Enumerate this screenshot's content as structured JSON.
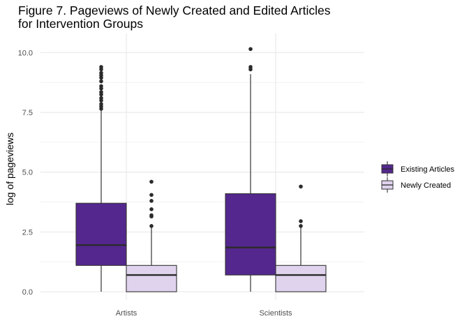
{
  "chart_data": {
    "type": "boxplot",
    "title": "Figure 7. Pageviews of Newly Created and Edited Articles\n for Intervention Groups",
    "xlabel": "",
    "ylabel": "log of pageviews",
    "categories": [
      "Artists",
      "Scientists"
    ],
    "ylim": [
      -0.35,
      10.8
    ],
    "yticks": [
      0.0,
      2.5,
      5.0,
      7.5,
      10.0
    ],
    "ytick_labels": [
      "0.0",
      "2.5",
      "5.0",
      "7.5",
      "10.0"
    ],
    "grid": true,
    "legend_position": "right",
    "series": [
      {
        "name": "Existing Articles",
        "color": "#54278f",
        "boxes": [
          {
            "category": "Artists",
            "min": 0.0,
            "q1": 1.1,
            "median": 1.95,
            "q3": 3.7,
            "max": 7.6,
            "outliers": [
              7.65,
              7.75,
              7.85,
              8.0,
              8.1,
              8.25,
              8.35,
              8.5,
              8.6,
              8.8,
              8.95,
              9.05,
              9.15,
              9.3,
              9.4
            ]
          },
          {
            "category": "Scientists",
            "min": 0.0,
            "q1": 0.7,
            "median": 1.85,
            "q3": 4.1,
            "max": 9.1,
            "outliers": [
              9.3,
              9.4,
              10.15
            ]
          }
        ]
      },
      {
        "name": "Newly Created",
        "color": "#e0d3ee",
        "boxes": [
          {
            "category": "Artists",
            "min": 0.0,
            "q1": 0.0,
            "median": 0.7,
            "q3": 1.1,
            "max": 2.7,
            "outliers": [
              2.75,
              3.15,
              3.2,
              3.45,
              3.8,
              4.05,
              4.6
            ]
          },
          {
            "category": "Scientists",
            "min": 0.0,
            "q1": 0.0,
            "median": 0.7,
            "q3": 1.1,
            "max": 2.7,
            "outliers": [
              2.75,
              2.95,
              4.4
            ]
          }
        ]
      }
    ]
  }
}
